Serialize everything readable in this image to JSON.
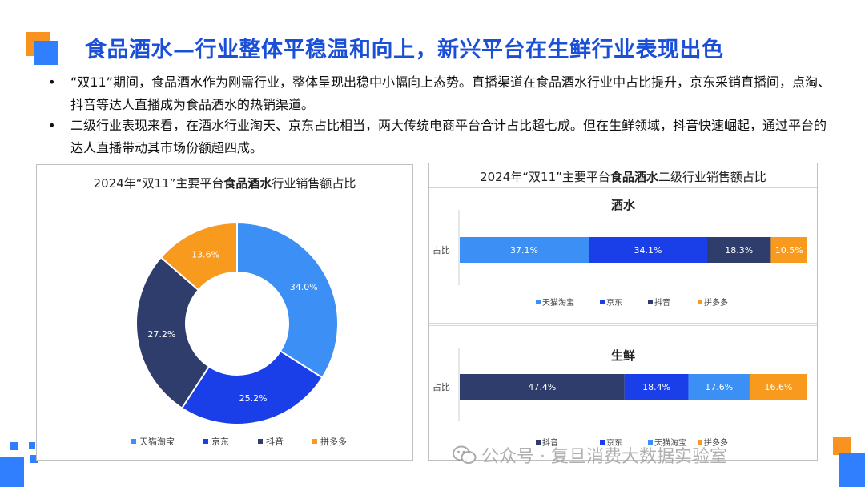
{
  "title": "食品酒水—行业整体平稳温和向上，新兴平台在生鲜行业表现出色",
  "bullets": [
    "“双11”期间，食品酒水作为刚需行业，整体呈现出稳中小幅向上态势。直播渠道在食品酒水行业中占比提升，京东采销直播间，点淘、抖音等达人直播成为食品酒水的热销渠道。",
    "二级行业表现来看，在酒水行业淘天、京东占比相当，两大传统电商平台合计占比超七成。但在生鲜领域，抖音快速崛起，通过平台的达人直播带动其市场份额超四成。"
  ],
  "bullet_marker": "•",
  "left_panel": {
    "title_pre": "2024年“双11”主要平台",
    "title_bold": "食品酒水",
    "title_post": "行业销售额占比"
  },
  "right_panel": {
    "title_pre": "2024年“双11”主要平台",
    "title_bold": "食品酒水",
    "title_post": "二级行业销售额占比"
  },
  "watermark": "公众号 · 复旦消费大数据实验室",
  "colors": {
    "tmall": "#3b8ff5",
    "jd": "#1a3fe8",
    "douyin": "#2e3d6b",
    "pdd": "#f79a1e",
    "title": "#1a4fd8",
    "deco_orange": "#f7931e",
    "deco_blue": "#2f7fff"
  },
  "chart_data": [
    {
      "type": "pie",
      "donut": true,
      "categories": [
        "天猫淘宝",
        "京东",
        "抖音",
        "拼多多"
      ],
      "values": [
        34.0,
        25.2,
        27.2,
        13.6
      ],
      "labels": [
        "34.0%",
        "25.2%",
        "27.2%",
        "13.6%"
      ],
      "legend": "bottom"
    },
    {
      "type": "bar",
      "stacked": true,
      "orientation": "horizontal",
      "title": "酒水",
      "categories": [
        "占比"
      ],
      "series": [
        {
          "name": "天猫淘宝",
          "values": [
            37.1
          ],
          "label": "37.1%"
        },
        {
          "name": "京东",
          "values": [
            34.1
          ],
          "label": "34.1%"
        },
        {
          "name": "抖音",
          "values": [
            18.3
          ],
          "label": "18.3%"
        },
        {
          "name": "拼多多",
          "values": [
            10.5
          ],
          "label": "10.5%"
        }
      ],
      "legend": "bottom"
    },
    {
      "type": "bar",
      "stacked": true,
      "orientation": "horizontal",
      "title": "生鲜",
      "categories": [
        "占比"
      ],
      "series": [
        {
          "name": "抖音",
          "values": [
            47.4
          ],
          "label": "47.4%"
        },
        {
          "name": "京东",
          "values": [
            18.4
          ],
          "label": "18.4%"
        },
        {
          "name": "天猫淘宝",
          "values": [
            17.6
          ],
          "label": "17.6%"
        },
        {
          "name": "拼多多",
          "values": [
            16.6
          ],
          "label": "16.6%"
        }
      ],
      "legend": "bottom"
    }
  ]
}
